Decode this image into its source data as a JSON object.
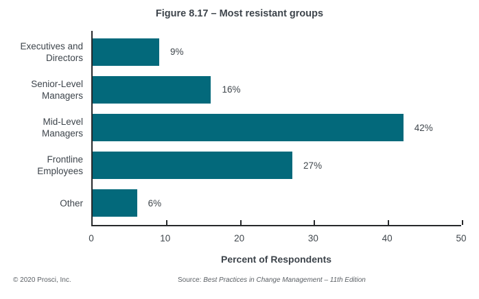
{
  "figure": {
    "title": "Figure 8.17 – Most resistant groups",
    "footer": {
      "copyright": "© 2020 Prosci, Inc.",
      "source_prefix": "Source: ",
      "source_title": "Best Practices in Change Management – 11th Edition"
    }
  },
  "chart_data": {
    "type": "bar",
    "orientation": "horizontal",
    "title": "Figure 8.17 – Most resistant groups",
    "categories": [
      "Executives and Directors",
      "Senior-Level Managers",
      "Mid-Level Managers",
      "Frontline Employees",
      "Other"
    ],
    "values": [
      9,
      16,
      42,
      27,
      6
    ],
    "value_labels": [
      "9%",
      "16%",
      "42%",
      "27%",
      "6%"
    ],
    "xlabel": "Percent of Respondents",
    "ylabel": "",
    "xlim": [
      0,
      50
    ],
    "xticks": [
      0,
      10,
      20,
      30,
      40,
      50
    ],
    "grid": false,
    "legend": false,
    "bar_color": "#03697b",
    "axis_color": "#26282a",
    "text_color": "#3f464c"
  }
}
